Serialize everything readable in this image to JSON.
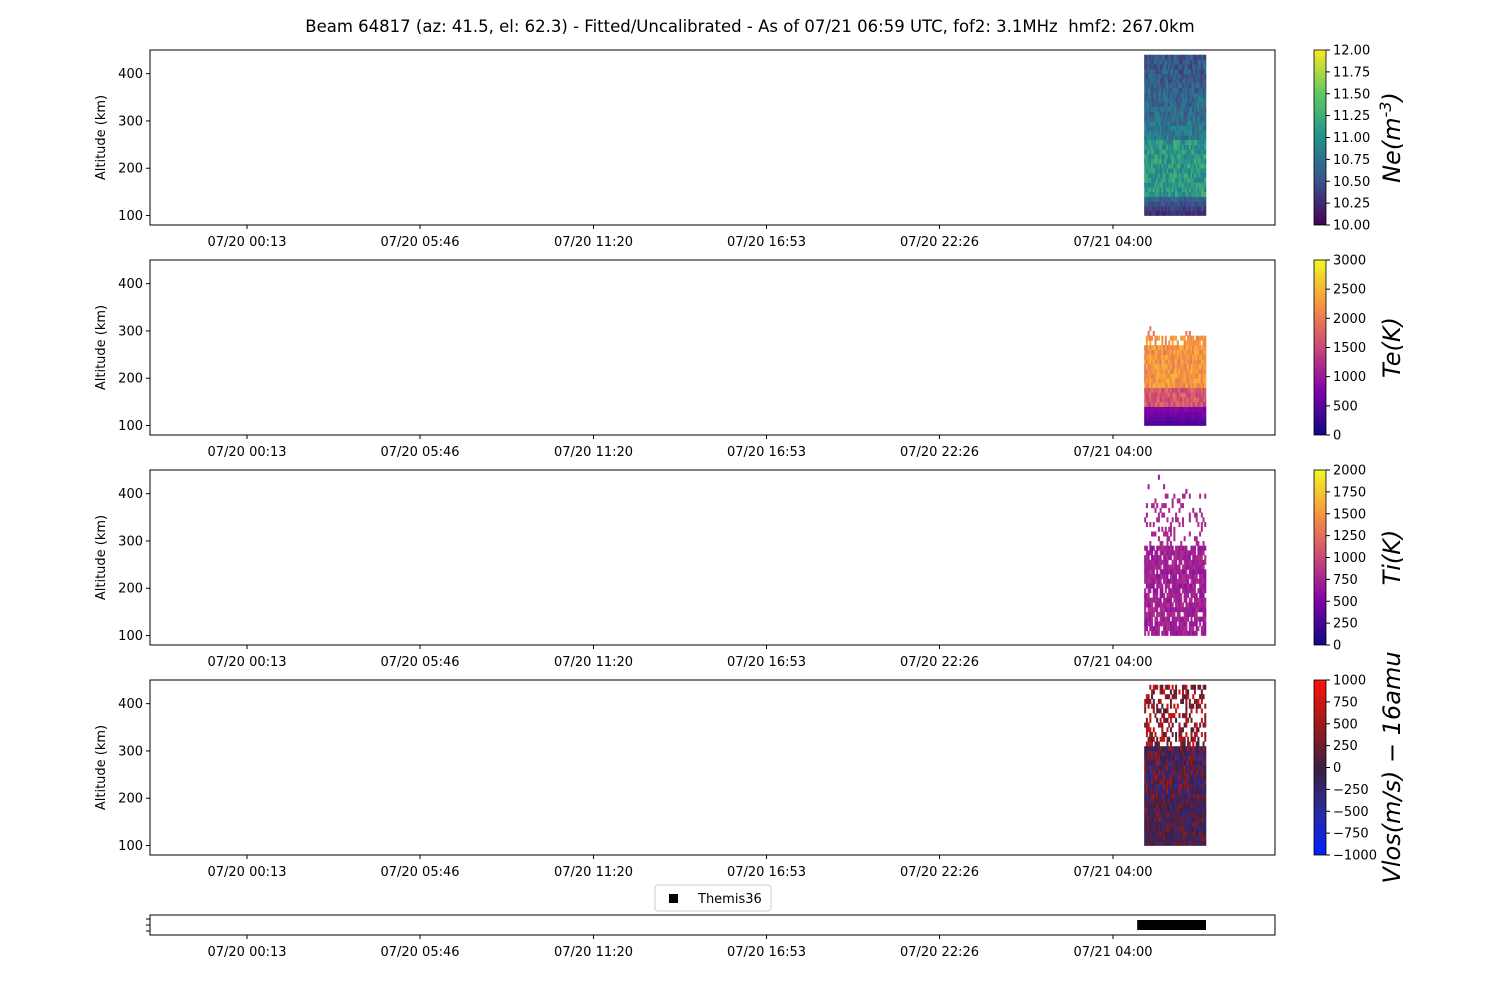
{
  "title": "Beam 64817 (az: 41.5, el: 62.3) - Fitted/Uncalibrated - As of 07/21 06:59 UTC, fof2: 3.1MHz  hmf2: 267.0km",
  "x_tick_labels": [
    "07/20 00:13",
    "07/20 05:46",
    "07/20 11:20",
    "07/20 16:53",
    "07/20 22:26",
    "07/21 04:00"
  ],
  "legend": {
    "label": "Themis36"
  },
  "chart_data": [
    {
      "type": "heatmap",
      "panel": "Ne",
      "ylabel": "Altitude (km)",
      "yticks": [
        100,
        200,
        300,
        400
      ],
      "ylim": [
        80,
        450
      ],
      "time_ticks": [
        "07/20 00:13",
        "07/20 05:46",
        "07/20 11:20",
        "07/20 16:53",
        "07/20 22:26",
        "07/21 04:00"
      ],
      "data_window": {
        "start": "07/21 05:00",
        "end": "07/21 06:59"
      },
      "altitude_range": [
        100,
        440
      ],
      "colorbar": {
        "label": "Ne(m^-3)",
        "label_main": "Ne(m",
        "label_sup": "-3",
        "label_end": ")",
        "colormap": "viridis",
        "range": [
          10.0,
          12.0
        ],
        "ticks": [
          "10.00",
          "10.25",
          "10.50",
          "10.75",
          "11.00",
          "11.25",
          "11.50",
          "11.75",
          "12.00"
        ],
        "colors": [
          "#440154",
          "#3b528b",
          "#21918c",
          "#5ec962",
          "#fde725"
        ]
      }
    },
    {
      "type": "heatmap",
      "panel": "Te",
      "ylabel": "Altitude (km)",
      "yticks": [
        100,
        200,
        300,
        400
      ],
      "ylim": [
        80,
        450
      ],
      "time_ticks": [
        "07/20 00:13",
        "07/20 05:46",
        "07/20 11:20",
        "07/20 16:53",
        "07/20 22:26",
        "07/21 04:00"
      ],
      "data_window": {
        "start": "07/21 05:00",
        "end": "07/21 06:59"
      },
      "altitude_range": [
        100,
        310
      ],
      "colorbar": {
        "label": "Te(K)",
        "colormap": "plasma",
        "range": [
          0,
          3000
        ],
        "ticks": [
          "0",
          "500",
          "1000",
          "1500",
          "2000",
          "2500",
          "3000"
        ],
        "colors": [
          "#0d0887",
          "#7e03a8",
          "#cc4778",
          "#f89540",
          "#f0f921"
        ]
      }
    },
    {
      "type": "heatmap",
      "panel": "Ti",
      "ylabel": "Altitude (km)",
      "yticks": [
        100,
        200,
        300,
        400
      ],
      "ylim": [
        80,
        450
      ],
      "time_ticks": [
        "07/20 00:13",
        "07/20 05:46",
        "07/20 11:20",
        "07/20 16:53",
        "07/20 22:26",
        "07/21 04:00"
      ],
      "data_window": {
        "start": "07/21 05:00",
        "end": "07/21 06:59"
      },
      "altitude_range": [
        100,
        440
      ],
      "colorbar": {
        "label": "Ti(K)",
        "colormap": "plasma",
        "range": [
          0,
          2000
        ],
        "ticks": [
          "0",
          "250",
          "500",
          "750",
          "1000",
          "1250",
          "1500",
          "1750",
          "2000"
        ],
        "colors": [
          "#0d0887",
          "#7e03a8",
          "#cc4778",
          "#f89540",
          "#f0f921"
        ]
      }
    },
    {
      "type": "heatmap",
      "panel": "Vlos",
      "ylabel": "Altitude (km)",
      "yticks": [
        100,
        200,
        300,
        400
      ],
      "ylim": [
        80,
        450
      ],
      "time_ticks": [
        "07/20 00:13",
        "07/20 05:46",
        "07/20 11:20",
        "07/20 16:53",
        "07/20 22:26",
        "07/21 04:00"
      ],
      "data_window": {
        "start": "07/21 05:00",
        "end": "07/21 06:59"
      },
      "altitude_range": [
        100,
        440
      ],
      "colorbar": {
        "label": "Vlos(m/s) − 16amu",
        "colormap": "bwr-dark",
        "range": [
          -1000,
          1000
        ],
        "ticks": [
          "−1000",
          "−750",
          "−500",
          "−250",
          "0",
          "250",
          "500",
          "750",
          "1000"
        ],
        "colors": [
          "#0022ff",
          "#2a2aa0",
          "#3c1f40",
          "#a01a1a",
          "#ff1010"
        ]
      }
    },
    {
      "type": "scatter",
      "panel": "Themis36",
      "series": [
        {
          "name": "Themis36",
          "marker": "square",
          "color": "#000000",
          "x_start": "07/21 05:00",
          "x_end": "07/21 06:59"
        }
      ],
      "time_ticks": [
        "07/20 00:13",
        "07/20 05:46",
        "07/20 11:20",
        "07/20 16:53",
        "07/20 22:26",
        "07/21 04:00"
      ]
    }
  ]
}
